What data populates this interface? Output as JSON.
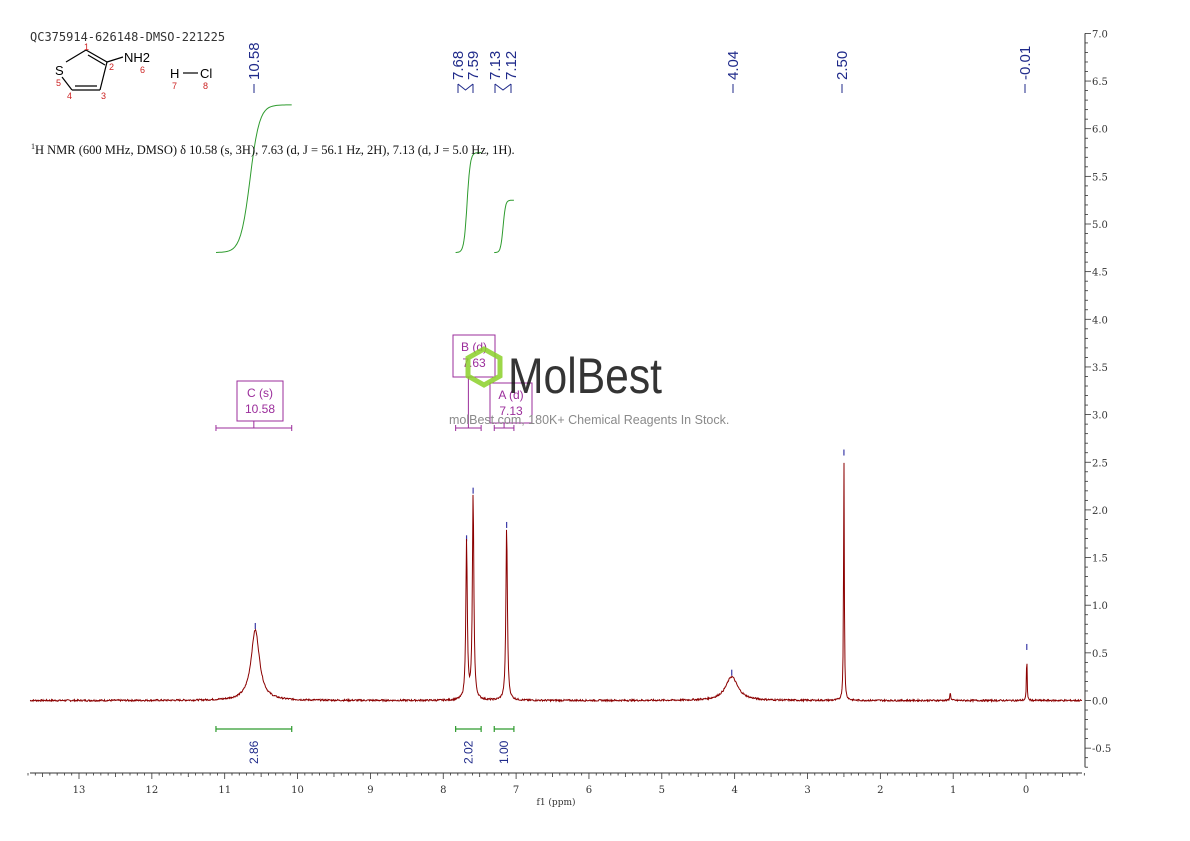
{
  "sample_id": "QC375914-626148-DMSO-221225",
  "nmr_summary": {
    "sup": "1",
    "text": "H NMR (600 MHz, DMSO) δ 10.58 (s, 3H), 7.63 (d, J = 56.1 Hz, 2H), 7.13 (d, J = 5.0 Hz, 1H)."
  },
  "molecule": {
    "atoms": [
      "S",
      "NH2",
      "H",
      "Cl"
    ],
    "atom_numbers": [
      "1",
      "2",
      "3",
      "4",
      "5",
      "6",
      "7",
      "8"
    ]
  },
  "watermark": {
    "brand": "MolBest",
    "tagline": "molBest.com, 180K+ Chemical Reagents In Stock."
  },
  "colors": {
    "spectrum": "#8b0000",
    "peak_label": "#1f2a8a",
    "integral": "#2e9b2e",
    "multiplet": "#9b2d9b",
    "axis": "#333333",
    "logo_green": "#8bd12a"
  },
  "chart_data": {
    "type": "line",
    "xlabel": "f1 (ppm)",
    "x_range": [
      13.7,
      -0.8
    ],
    "x_reversed": true,
    "ylim": [
      -0.7,
      7.0
    ],
    "x_ticks": [
      13,
      12,
      11,
      10,
      9,
      8,
      7,
      6,
      5,
      4,
      3,
      2,
      1,
      0
    ],
    "y_ticks": [
      "7.0",
      "6.5",
      "6.0",
      "5.5",
      "5.0",
      "4.5",
      "4.0",
      "3.5",
      "3.0",
      "2.5",
      "2.0",
      "1.5",
      "1.0",
      "0.5",
      "0.0",
      "-0.5"
    ],
    "y_tick_values": [
      7.0,
      6.5,
      6.0,
      5.5,
      5.0,
      4.5,
      4.0,
      3.5,
      3.0,
      2.5,
      2.0,
      1.5,
      1.0,
      0.5,
      0.0,
      -0.5
    ],
    "peaks": [
      {
        "ppm": 10.58,
        "height": 0.74,
        "width": 0.07
      },
      {
        "ppm": 7.68,
        "height": 1.66,
        "width": 0.012
      },
      {
        "ppm": 7.59,
        "height": 2.16,
        "width": 0.012
      },
      {
        "ppm": 7.13,
        "height": 1.8,
        "width": 0.012
      },
      {
        "ppm": 7.12,
        "height": 0.05,
        "width": 0.012
      },
      {
        "ppm": 4.04,
        "height": 0.25,
        "width": 0.1
      },
      {
        "ppm": 2.5,
        "height": 2.56,
        "width": 0.006
      },
      {
        "ppm": 1.04,
        "height": 0.08,
        "width": 0.008
      },
      {
        "ppm": -0.01,
        "height": 0.52,
        "width": 0.005
      }
    ],
    "peak_labels": [
      "10.58",
      "7.68",
      "7.59",
      "7.13",
      "7.12",
      "4.04",
      "2.50",
      "-0.01"
    ],
    "peak_label_ppm": [
      10.58,
      7.68,
      7.59,
      7.13,
      7.12,
      4.04,
      2.5,
      -0.01
    ],
    "integrals": [
      {
        "from": 11.12,
        "to": 10.08,
        "value": "2.86",
        "curve_bottom": 4.7,
        "curve_top": 6.25
      },
      {
        "from": 7.83,
        "to": 7.48,
        "value": "2.02",
        "curve_bottom": 4.7,
        "curve_top": 5.75
      },
      {
        "from": 7.3,
        "to": 7.03,
        "value": "1.00",
        "curve_bottom": 4.7,
        "curve_top": 5.25
      }
    ],
    "multiplets": [
      {
        "label": "C (s)",
        "shift": "10.58",
        "from": 11.12,
        "to": 10.08
      },
      {
        "label": "B (d)",
        "shift": "7.63",
        "from": 7.83,
        "to": 7.48
      },
      {
        "label": "A (d)",
        "shift": "7.13",
        "from": 7.3,
        "to": 7.03
      }
    ]
  }
}
